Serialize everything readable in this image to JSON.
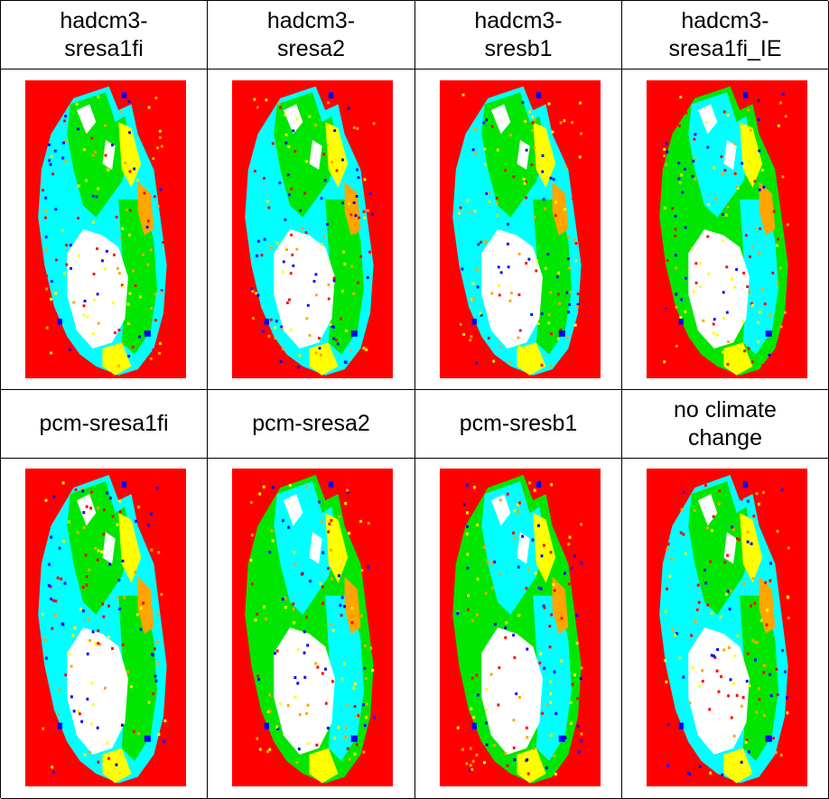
{
  "table": {
    "header_row_1": [
      "hadcm3-\nsresa1fi",
      "hadcm3-\nsresa2",
      "hadcm3-\nsresb1",
      "hadcm3-\nsresa1fi_IE"
    ],
    "header_row_2": [
      "pcm-sresa1fi",
      "pcm-sresa2",
      "pcm-sresb1",
      "no climate\nchange"
    ]
  },
  "colors": {
    "background": "#ff0000",
    "lowland": "#00ffff",
    "mid": "#00e600",
    "high": "#ffff00",
    "orange": "#ffa500",
    "blue": "#0000ff",
    "white": "#ffffff"
  },
  "maps": [
    {
      "dominant": "lowland"
    },
    {
      "dominant": "lowland"
    },
    {
      "dominant": "lowland"
    },
    {
      "dominant": "mid"
    },
    {
      "dominant": "lowland"
    },
    {
      "dominant": "mid"
    },
    {
      "dominant": "mid"
    },
    {
      "dominant": "lowland"
    }
  ]
}
